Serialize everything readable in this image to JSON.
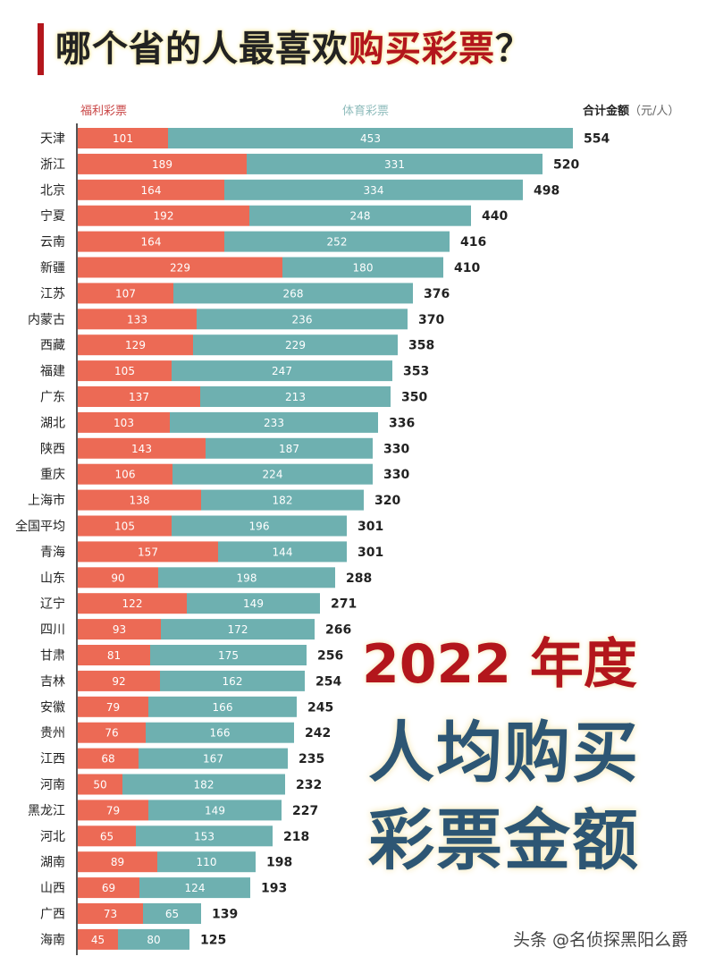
{
  "title": {
    "prefix": "哪个省的人最喜欢",
    "highlight": "购买彩票",
    "suffix": "？"
  },
  "legend": {
    "welfare": "福利彩票",
    "sports": "体育彩票",
    "total": "合计金额",
    "unit": "（元/人）"
  },
  "headline": {
    "line1": "2022 年度",
    "line2": "人均购买",
    "line3": "彩票金额"
  },
  "watermark": "头条 @名侦探黑阳么爵",
  "colors": {
    "welfare": "#ec6a55",
    "sports": "#6eb0b0",
    "title_accent": "#b3161c",
    "headline_blue": "#2d5674"
  },
  "chart_data": {
    "type": "bar",
    "orientation": "horizontal",
    "stacked": true,
    "title": "哪个省的人最喜欢购买彩票？",
    "unit": "元/人",
    "legend_position": "top",
    "categories": [
      "天津",
      "浙江",
      "北京",
      "宁夏",
      "云南",
      "新疆",
      "江苏",
      "内蒙古",
      "西藏",
      "福建",
      "广东",
      "湖北",
      "陕西",
      "重庆",
      "上海市",
      "全国平均",
      "青海",
      "山东",
      "辽宁",
      "四川",
      "甘肃",
      "吉林",
      "安徽",
      "贵州",
      "江西",
      "河南",
      "黑龙江",
      "河北",
      "湖南",
      "山西",
      "广西",
      "海南"
    ],
    "series": [
      {
        "name": "福利彩票",
        "values": [
          101,
          189,
          164,
          192,
          164,
          229,
          107,
          133,
          129,
          105,
          137,
          103,
          143,
          106,
          138,
          105,
          157,
          90,
          122,
          93,
          81,
          92,
          79,
          76,
          68,
          50,
          79,
          65,
          89,
          69,
          73,
          45
        ]
      },
      {
        "name": "体育彩票",
        "values": [
          453,
          331,
          334,
          248,
          252,
          180,
          268,
          236,
          229,
          247,
          213,
          233,
          187,
          224,
          182,
          196,
          144,
          198,
          149,
          172,
          175,
          162,
          166,
          166,
          167,
          182,
          149,
          153,
          110,
          124,
          65,
          80
        ]
      }
    ],
    "totals": [
      554,
      520,
      498,
      440,
      416,
      410,
      376,
      370,
      358,
      353,
      350,
      336,
      330,
      330,
      320,
      301,
      301,
      288,
      271,
      266,
      256,
      254,
      245,
      242,
      235,
      232,
      227,
      218,
      198,
      193,
      139,
      125
    ],
    "xlim": [
      0,
      554
    ],
    "grid": false
  }
}
